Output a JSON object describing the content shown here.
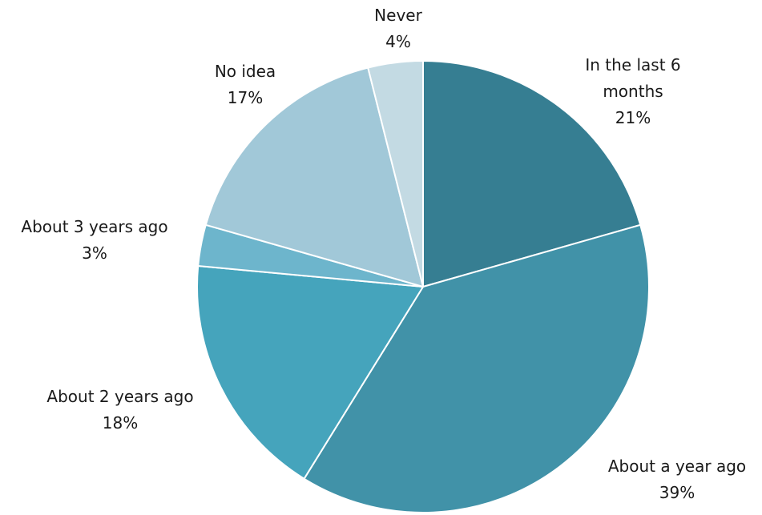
{
  "chart_data": {
    "type": "pie",
    "start_angle_deg": 0,
    "direction": "clockwise",
    "slices": [
      {
        "label_lines": [
          "In the last 6",
          "months"
        ],
        "percent_label": "21%",
        "value": 21,
        "color": "#367e92"
      },
      {
        "label_lines": [
          "About a year ago"
        ],
        "percent_label": "39%",
        "value": 39,
        "color": "#4192a8"
      },
      {
        "label_lines": [
          "About 2 years ago"
        ],
        "percent_label": "18%",
        "value": 18,
        "color": "#45a4bc"
      },
      {
        "label_lines": [
          "About 3 years ago"
        ],
        "percent_label": "3%",
        "value": 3,
        "color": "#6db5cc"
      },
      {
        "label_lines": [
          "No idea"
        ],
        "percent_label": "17%",
        "value": 17,
        "color": "#a1c8d8"
      },
      {
        "label_lines": [
          "Never"
        ],
        "percent_label": "4%",
        "value": 4,
        "color": "#c3dae3"
      }
    ],
    "slice_border_color": "#ffffff"
  }
}
